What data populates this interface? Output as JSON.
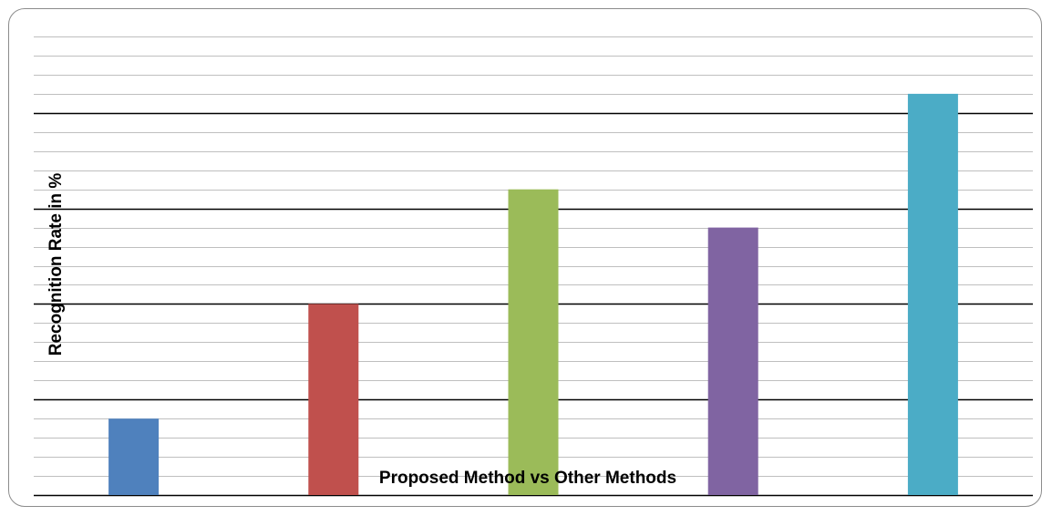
{
  "chart_data": {
    "type": "bar",
    "categories": [
      "",
      "",
      "",
      "",
      ""
    ],
    "values": [
      80,
      86,
      92,
      90,
      97
    ],
    "colors": [
      "#4f81bd",
      "#c0504d",
      "#9bbb59",
      "#8064a2",
      "#4bacc6"
    ],
    "xlabel": "Proposed Method vs Other Methods",
    "ylabel": "Recognition Rate in %",
    "ylim": [
      76,
      100
    ],
    "major_step": 5,
    "minor_step": 1,
    "grid": true,
    "legend": "none",
    "tick_labels_visible": false
  }
}
